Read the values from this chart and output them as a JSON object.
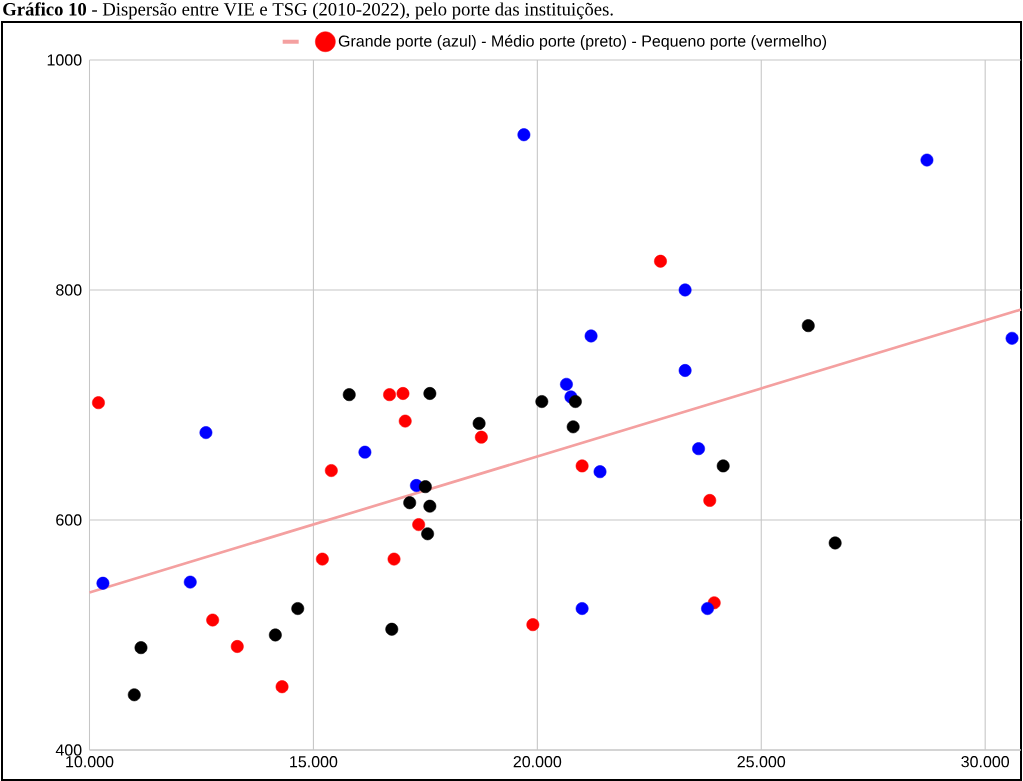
{
  "chart_data": {
    "type": "scatter",
    "title": "**Gráfico 10** - Dispersão entre VIE e TSG (2010-2022), pelo porte das instituições.",
    "xlim": [
      10000,
      30800
    ],
    "ylim": [
      400,
      1000
    ],
    "xticks": [
      {
        "value": 10000,
        "label": "10.000"
      },
      {
        "value": 15000,
        "label": "15.000"
      },
      {
        "value": 20000,
        "label": "20.000"
      },
      {
        "value": 25000,
        "label": "25.000"
      },
      {
        "value": 30000,
        "label": "30.000"
      }
    ],
    "yticks": [
      400,
      600,
      800,
      1000
    ],
    "grid": true,
    "legend": "top",
    "marker": "circle",
    "series": [
      {
        "name": "Grande porte (azul)  - Médio porte (preto) - Pequeno porte (vermelho)",
        "color": "#ff0000",
        "x": [
          10200,
          12600,
          15400,
          16150,
          15200,
          16800,
          10300,
          12250,
          12750,
          13300,
          14300,
          11150,
          11000,
          14150,
          14650,
          16750,
          15800,
          16700,
          17000,
          17600,
          17050,
          17300,
          17500,
          17150,
          17600,
          17350,
          17550,
          18700,
          18750,
          20100,
          20650,
          20750,
          20850,
          20800,
          21000,
          21400,
          23300,
          23600,
          24150,
          23850,
          19700,
          28700,
          22750,
          23300,
          21200,
          26050,
          30600,
          26650,
          23950,
          23800,
          19900,
          21000
        ],
        "values": [
          702,
          676,
          643,
          659,
          566,
          566,
          545,
          546,
          513,
          490,
          455,
          489,
          448,
          500,
          523,
          505,
          709,
          709,
          710,
          710,
          686,
          630,
          629,
          615,
          612,
          596,
          588,
          684,
          672,
          703,
          718,
          707,
          703,
          681,
          647,
          642,
          730,
          662,
          647,
          617,
          935,
          913,
          825,
          800,
          760,
          769,
          758,
          580,
          528,
          523,
          509,
          523
        ],
        "colors": [
          "#ff0000",
          "#0000ff",
          "#ff0000",
          "#0000ff",
          "#ff0000",
          "#ff0000",
          "#0000ff",
          "#0000ff",
          "#ff0000",
          "#ff0000",
          "#ff0000",
          "#000000",
          "#000000",
          "#000000",
          "#000000",
          "#000000",
          "#000000",
          "#ff0000",
          "#ff0000",
          "#000000",
          "#ff0000",
          "#0000ff",
          "#000000",
          "#000000",
          "#000000",
          "#ff0000",
          "#000000",
          "#000000",
          "#ff0000",
          "#000000",
          "#0000ff",
          "#0000ff",
          "#000000",
          "#000000",
          "#ff0000",
          "#0000ff",
          "#0000ff",
          "#0000ff",
          "#000000",
          "#ff0000",
          "#0000ff",
          "#0000ff",
          "#ff0000",
          "#0000ff",
          "#0000ff",
          "#000000",
          "#0000ff",
          "#000000",
          "#ff0000",
          "#0000ff",
          "#ff0000",
          "#0000ff"
        ]
      },
      {
        "type": "line",
        "marker": "none",
        "color": "#f4a0a0",
        "x": [
          10000,
          30800
        ],
        "values": [
          537,
          783
        ]
      }
    ]
  }
}
